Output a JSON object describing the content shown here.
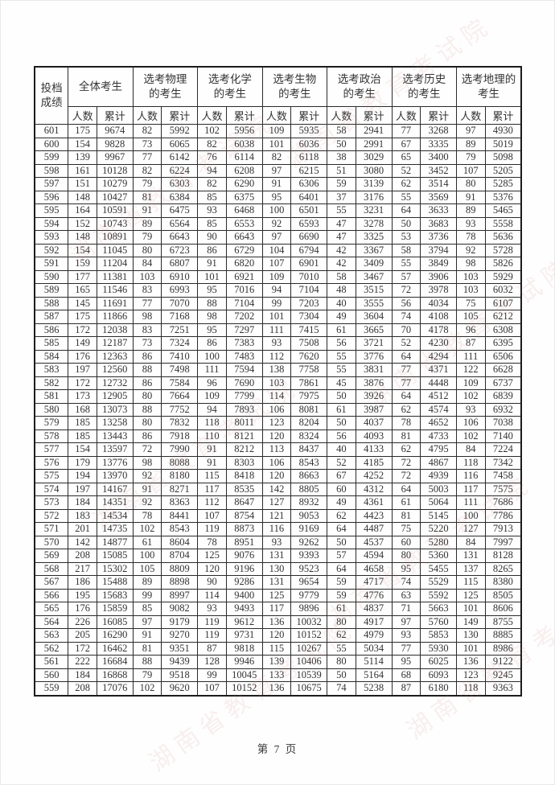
{
  "page": {
    "footer": "第 7 页"
  },
  "watermark": {
    "text": "湖南省教育考试院",
    "color": "#cd7d7d"
  },
  "table": {
    "corner_header_lines": [
      "投档",
      "成绩"
    ],
    "groups": [
      {
        "label_lines": [
          "全体考生"
        ]
      },
      {
        "label_lines": [
          "选考物理",
          "的考生"
        ]
      },
      {
        "label_lines": [
          "选考化学",
          "的考生"
        ]
      },
      {
        "label_lines": [
          "选考生物",
          "的考生"
        ]
      },
      {
        "label_lines": [
          "选考政治",
          "的考生"
        ]
      },
      {
        "label_lines": [
          "选考历史",
          "的考生"
        ]
      },
      {
        "label_lines": [
          "选考地理的",
          "考生"
        ]
      }
    ],
    "subheaders": [
      "人数",
      "累计"
    ],
    "rows": [
      [
        601,
        175,
        9674,
        82,
        5992,
        102,
        5956,
        109,
        5935,
        58,
        2941,
        77,
        3268,
        97,
        4930
      ],
      [
        600,
        154,
        9828,
        73,
        6065,
        82,
        6038,
        101,
        6036,
        50,
        2991,
        67,
        3335,
        89,
        5019
      ],
      [
        599,
        139,
        9967,
        77,
        6142,
        76,
        6114,
        82,
        6118,
        38,
        3029,
        65,
        3400,
        79,
        5098
      ],
      [
        598,
        161,
        10128,
        82,
        6224,
        94,
        6208,
        97,
        6215,
        51,
        3080,
        52,
        3452,
        107,
        5205
      ],
      [
        597,
        151,
        10279,
        79,
        6303,
        82,
        6290,
        91,
        6306,
        59,
        3139,
        62,
        3514,
        80,
        5285
      ],
      [
        596,
        148,
        10427,
        81,
        6384,
        85,
        6375,
        95,
        6401,
        37,
        3176,
        55,
        3569,
        91,
        5376
      ],
      [
        595,
        164,
        10591,
        91,
        6475,
        93,
        6468,
        100,
        6501,
        55,
        3231,
        64,
        3633,
        89,
        5465
      ],
      [
        594,
        152,
        10743,
        89,
        6564,
        85,
        6553,
        92,
        6593,
        47,
        3278,
        50,
        3683,
        93,
        5558
      ],
      [
        593,
        148,
        10891,
        79,
        6643,
        90,
        6643,
        97,
        6690,
        47,
        3325,
        53,
        3736,
        78,
        5636
      ],
      [
        592,
        154,
        11045,
        80,
        6723,
        86,
        6729,
        104,
        6794,
        42,
        3367,
        58,
        3794,
        92,
        5728
      ],
      [
        591,
        159,
        11204,
        84,
        6807,
        91,
        6820,
        107,
        6901,
        42,
        3409,
        55,
        3849,
        98,
        5826
      ],
      [
        590,
        177,
        11381,
        103,
        6910,
        101,
        6921,
        109,
        7010,
        58,
        3467,
        57,
        3906,
        103,
        5929
      ],
      [
        589,
        165,
        11546,
        83,
        6993,
        95,
        7016,
        94,
        7104,
        48,
        3515,
        72,
        3978,
        103,
        6032
      ],
      [
        588,
        145,
        11691,
        77,
        7070,
        88,
        7104,
        99,
        7203,
        40,
        3555,
        56,
        4034,
        75,
        6107
      ],
      [
        587,
        175,
        11866,
        98,
        7168,
        98,
        7202,
        101,
        7304,
        49,
        3604,
        74,
        4108,
        105,
        6212
      ],
      [
        586,
        172,
        12038,
        83,
        7251,
        95,
        7297,
        111,
        7415,
        61,
        3665,
        70,
        4178,
        96,
        6308
      ],
      [
        585,
        149,
        12187,
        73,
        7324,
        86,
        7383,
        93,
        7508,
        56,
        3721,
        52,
        4230,
        87,
        6395
      ],
      [
        584,
        176,
        12363,
        86,
        7410,
        100,
        7483,
        112,
        7620,
        55,
        3776,
        64,
        4294,
        111,
        6506
      ],
      [
        583,
        197,
        12560,
        88,
        7498,
        111,
        7594,
        138,
        7758,
        55,
        3831,
        77,
        4371,
        122,
        6628
      ],
      [
        582,
        172,
        12732,
        86,
        7584,
        96,
        7690,
        103,
        7861,
        45,
        3876,
        77,
        4448,
        109,
        6737
      ],
      [
        581,
        173,
        12905,
        80,
        7664,
        109,
        7799,
        114,
        7975,
        50,
        3926,
        64,
        4512,
        102,
        6839
      ],
      [
        580,
        168,
        13073,
        88,
        7752,
        94,
        7893,
        106,
        8081,
        61,
        3987,
        62,
        4574,
        93,
        6932
      ],
      [
        579,
        185,
        13258,
        80,
        7832,
        118,
        8011,
        123,
        8204,
        50,
        4037,
        78,
        4652,
        106,
        7038
      ],
      [
        578,
        185,
        13443,
        86,
        7918,
        110,
        8121,
        120,
        8324,
        56,
        4093,
        81,
        4733,
        102,
        7140
      ],
      [
        577,
        154,
        13597,
        72,
        7990,
        91,
        8212,
        113,
        8437,
        40,
        4133,
        62,
        4795,
        84,
        7224
      ],
      [
        576,
        179,
        13776,
        98,
        8088,
        91,
        8303,
        106,
        8543,
        52,
        4185,
        72,
        4867,
        118,
        7342
      ],
      [
        575,
        194,
        13970,
        92,
        8180,
        115,
        8418,
        120,
        8663,
        67,
        4252,
        72,
        4939,
        116,
        7458
      ],
      [
        574,
        197,
        14167,
        91,
        8271,
        117,
        8535,
        142,
        8805,
        60,
        4312,
        64,
        5003,
        117,
        7575
      ],
      [
        573,
        184,
        14351,
        92,
        8363,
        112,
        8647,
        127,
        8932,
        49,
        4361,
        61,
        5064,
        111,
        7686
      ],
      [
        572,
        183,
        14534,
        78,
        8441,
        107,
        8754,
        121,
        9053,
        62,
        4423,
        81,
        5145,
        100,
        7786
      ],
      [
        571,
        201,
        14735,
        102,
        8543,
        119,
        8873,
        116,
        9169,
        64,
        4487,
        75,
        5220,
        127,
        7913
      ],
      [
        570,
        142,
        14877,
        61,
        8604,
        78,
        8951,
        93,
        9262,
        50,
        4537,
        60,
        5280,
        84,
        7997
      ],
      [
        569,
        208,
        15085,
        100,
        8704,
        125,
        9076,
        131,
        9393,
        57,
        4594,
        80,
        5360,
        131,
        8128
      ],
      [
        568,
        217,
        15302,
        105,
        8809,
        120,
        9196,
        130,
        9523,
        64,
        4658,
        95,
        5455,
        137,
        8265
      ],
      [
        567,
        186,
        15488,
        89,
        8898,
        90,
        9286,
        131,
        9654,
        59,
        4717,
        74,
        5529,
        115,
        8380
      ],
      [
        566,
        195,
        15683,
        99,
        8997,
        114,
        9400,
        125,
        9779,
        59,
        4776,
        63,
        5592,
        125,
        8505
      ],
      [
        565,
        176,
        15859,
        85,
        9082,
        93,
        9493,
        117,
        9896,
        61,
        4837,
        71,
        5663,
        101,
        8606
      ],
      [
        564,
        226,
        16085,
        97,
        9179,
        119,
        9612,
        136,
        10032,
        80,
        4917,
        97,
        5760,
        149,
        8755
      ],
      [
        563,
        205,
        16290,
        91,
        9270,
        119,
        9731,
        120,
        10152,
        62,
        4979,
        93,
        5853,
        130,
        8885
      ],
      [
        562,
        172,
        16462,
        81,
        9351,
        87,
        9818,
        115,
        10267,
        55,
        5034,
        77,
        5930,
        101,
        8986
      ],
      [
        561,
        222,
        16684,
        88,
        9439,
        128,
        9946,
        139,
        10406,
        80,
        5114,
        95,
        6025,
        136,
        9122
      ],
      [
        560,
        184,
        16868,
        79,
        9518,
        99,
        10045,
        133,
        10539,
        50,
        5164,
        68,
        6093,
        123,
        9245
      ],
      [
        559,
        208,
        17076,
        102,
        9620,
        107,
        10152,
        136,
        10675,
        74,
        5238,
        87,
        6180,
        118,
        9363
      ]
    ]
  }
}
